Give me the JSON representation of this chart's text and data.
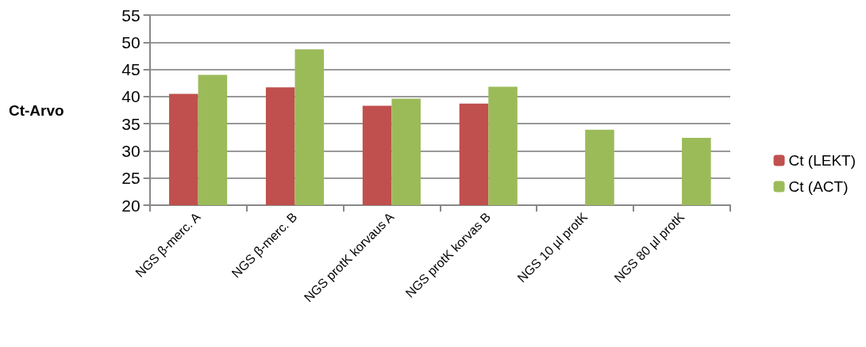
{
  "chart_data": {
    "type": "bar",
    "ylabel": "Ct-Arvo",
    "categories": [
      "NGS β-merc. A",
      "NGS β-merc. B",
      "NGS protK korvaus A",
      "NGS protK korvas B",
      "NGS 10 µl protK",
      "NGS 80 µl protK"
    ],
    "series": [
      {
        "name": "Ct (LEKT)",
        "color": "#c0504d",
        "values": [
          40.5,
          41.7,
          38.3,
          38.7,
          null,
          null
        ]
      },
      {
        "name": "Ct (ACT)",
        "color": "#9bbb59",
        "values": [
          44.0,
          48.7,
          39.6,
          41.8,
          33.9,
          32.4
        ]
      }
    ],
    "ylim": [
      20,
      55
    ],
    "yticks": [
      20,
      25,
      30,
      35,
      40,
      45,
      50,
      55
    ],
    "grid": "y",
    "legend": "right"
  }
}
